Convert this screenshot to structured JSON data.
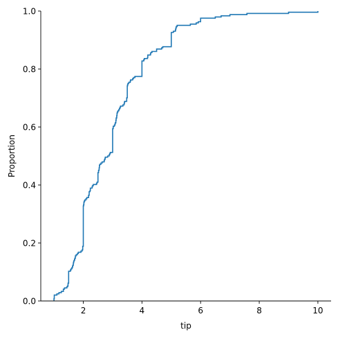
{
  "chart_data": {
    "type": "line",
    "subtype": "ecdf",
    "title": "",
    "xlabel": "tip",
    "ylabel": "Proportion",
    "xlim": [
      0.55,
      10.45
    ],
    "ylim": [
      0.0,
      1.0
    ],
    "x_ticks": [
      2,
      4,
      6,
      8,
      10
    ],
    "x_tick_labels": [
      "2",
      "4",
      "6",
      "8",
      "10"
    ],
    "y_ticks": [
      0.0,
      0.2,
      0.4,
      0.6,
      0.8,
      1.0
    ],
    "y_tick_labels": [
      "0.0",
      "0.2",
      "0.4",
      "0.6",
      "0.8",
      "1.0"
    ],
    "grid": false,
    "spines": [
      "left",
      "bottom"
    ],
    "line_color": "#1f77b4",
    "series": [
      {
        "x": [
          1.0,
          1.01,
          1.1,
          1.17,
          1.25,
          1.32,
          1.36,
          1.44,
          1.47,
          1.48,
          1.5,
          1.56,
          1.58,
          1.61,
          1.63,
          1.64,
          1.66,
          1.67,
          1.68,
          1.7,
          1.71,
          1.73,
          1.76,
          1.8,
          1.83,
          1.92,
          1.96,
          1.98,
          2.0,
          2.01,
          2.02,
          2.03,
          2.05,
          2.09,
          2.12,
          2.18,
          2.2,
          2.23,
          2.24,
          2.3,
          2.31,
          2.34,
          2.45,
          2.47,
          2.5,
          2.52,
          2.54,
          2.55,
          2.56,
          2.6,
          2.64,
          2.71,
          2.72,
          2.74,
          2.75,
          2.83,
          2.88,
          2.9,
          2.92,
          3.0,
          3.02,
          3.06,
          3.08,
          3.09,
          3.11,
          3.12,
          3.14,
          3.15,
          3.16,
          3.18,
          3.21,
          3.23,
          3.25,
          3.27,
          3.35,
          3.39,
          3.4,
          3.41,
          3.48,
          3.5,
          3.51,
          3.52,
          3.55,
          3.6,
          3.61,
          3.68,
          3.71,
          3.76,
          4.0,
          4.06,
          4.08,
          4.19,
          4.2,
          4.29,
          4.3,
          4.34,
          4.5,
          4.67,
          4.71,
          5.0,
          5.07,
          5.14,
          5.15,
          5.16,
          5.17,
          5.2,
          5.65,
          5.85,
          5.92,
          6.0,
          6.5,
          6.7,
          7.0,
          7.58,
          9.0,
          10.0
        ],
        "y": [
          0.0082,
          0.0205,
          0.0246,
          0.0287,
          0.0328,
          0.041,
          0.0451,
          0.0492,
          0.0533,
          0.0615,
          0.1025,
          0.1066,
          0.1107,
          0.1148,
          0.1189,
          0.123,
          0.1311,
          0.1352,
          0.1393,
          0.1434,
          0.1475,
          0.1557,
          0.1598,
          0.1639,
          0.168,
          0.1721,
          0.1762,
          0.1885,
          0.3279,
          0.332,
          0.3402,
          0.3443,
          0.3484,
          0.3525,
          0.3566,
          0.3648,
          0.3771,
          0.3811,
          0.3893,
          0.3934,
          0.3975,
          0.4016,
          0.4057,
          0.4098,
          0.4426,
          0.4508,
          0.459,
          0.4672,
          0.4713,
          0.4754,
          0.4795,
          0.4836,
          0.4877,
          0.4918,
          0.4959,
          0.5,
          0.5041,
          0.5082,
          0.5123,
          0.5943,
          0.6025,
          0.6066,
          0.6107,
          0.6148,
          0.623,
          0.6311,
          0.6393,
          0.6475,
          0.6516,
          0.6557,
          0.6598,
          0.6639,
          0.668,
          0.6721,
          0.6762,
          0.6803,
          0.6844,
          0.6885,
          0.7008,
          0.7418,
          0.7459,
          0.75,
          0.7541,
          0.7582,
          0.7623,
          0.7664,
          0.7705,
          0.7746,
          0.8279,
          0.832,
          0.8361,
          0.8402,
          0.8484,
          0.8525,
          0.8566,
          0.8607,
          0.8689,
          0.873,
          0.877,
          0.9262,
          0.9303,
          0.9344,
          0.9385,
          0.9426,
          0.9467,
          0.9508,
          0.9549,
          0.959,
          0.9631,
          0.9754,
          0.9795,
          0.9836,
          0.9877,
          0.9918,
          0.9959,
          1.0
        ]
      }
    ]
  }
}
